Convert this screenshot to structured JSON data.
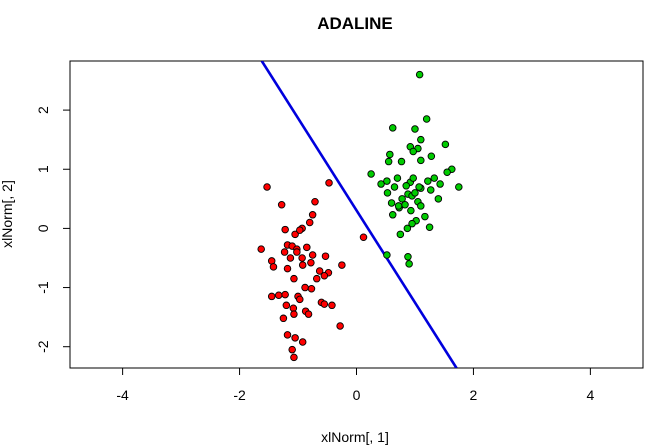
{
  "chart_data": {
    "type": "scatter",
    "title": "ADALINE",
    "xlabel": "xlNorm[, 1]",
    "ylabel": "xlNorm[, 2]",
    "xlim": [
      -4.9,
      4.9
    ],
    "ylim": [
      -2.36,
      2.83
    ],
    "xticks": [
      -4,
      -2,
      0,
      2,
      4
    ],
    "yticks": [
      -2,
      -1,
      0,
      1,
      2
    ],
    "grid": false,
    "legend": "none",
    "series": [
      {
        "color": "#ff0000",
        "points": [
          [
            -1.53,
            0.7
          ],
          [
            -1.28,
            0.4
          ],
          [
            -0.47,
            0.77
          ],
          [
            -0.71,
            0.45
          ],
          [
            -0.75,
            0.23
          ],
          [
            -0.8,
            0.1
          ],
          [
            -0.93,
            0.0
          ],
          [
            -1.22,
            -0.02
          ],
          [
            -1.05,
            -0.1
          ],
          [
            -0.97,
            -0.03
          ],
          [
            -1.63,
            -0.35
          ],
          [
            -1.18,
            -0.28
          ],
          [
            -1.1,
            -0.3
          ],
          [
            -1.02,
            -0.35
          ],
          [
            -0.85,
            -0.32
          ],
          [
            -1.23,
            -0.4
          ],
          [
            -1.45,
            -0.55
          ],
          [
            -1.13,
            -0.5
          ],
          [
            -1.02,
            -0.4
          ],
          [
            -0.93,
            -0.5
          ],
          [
            -0.75,
            -0.45
          ],
          [
            -0.53,
            -0.47
          ],
          [
            -1.42,
            -0.65
          ],
          [
            -1.18,
            -0.68
          ],
          [
            -0.92,
            -0.62
          ],
          [
            -0.78,
            -0.58
          ],
          [
            -0.63,
            -0.72
          ],
          [
            -0.48,
            -0.75
          ],
          [
            -0.25,
            -0.62
          ],
          [
            -1.07,
            -0.85
          ],
          [
            -0.68,
            -0.85
          ],
          [
            -0.55,
            -0.8
          ],
          [
            -0.88,
            -1.0
          ],
          [
            -1.33,
            -1.13
          ],
          [
            -1.22,
            -1.12
          ],
          [
            -1.0,
            -1.15
          ],
          [
            -0.77,
            -1.02
          ],
          [
            -1.45,
            -1.15
          ],
          [
            -1.08,
            -1.35
          ],
          [
            -1.2,
            -1.3
          ],
          [
            -0.97,
            -1.2
          ],
          [
            -0.6,
            -1.25
          ],
          [
            -0.55,
            -1.28
          ],
          [
            -0.42,
            -1.3
          ],
          [
            -1.07,
            -1.45
          ],
          [
            -1.25,
            -1.52
          ],
          [
            -0.87,
            -1.4
          ],
          [
            -0.28,
            -1.65
          ],
          [
            -1.18,
            -1.8
          ],
          [
            -1.05,
            -1.85
          ],
          [
            -0.92,
            -1.92
          ],
          [
            -1.1,
            -2.05
          ],
          [
            -1.07,
            -2.18
          ],
          [
            -0.82,
            -1.45
          ],
          [
            0.12,
            -0.15
          ]
        ]
      },
      {
        "color": "#00cc00",
        "points": [
          [
            1.08,
            2.6
          ],
          [
            1.2,
            1.85
          ],
          [
            0.62,
            1.7
          ],
          [
            1.0,
            1.68
          ],
          [
            1.52,
            1.42
          ],
          [
            1.1,
            1.5
          ],
          [
            0.92,
            1.38
          ],
          [
            1.05,
            1.35
          ],
          [
            0.97,
            1.3
          ],
          [
            0.57,
            1.25
          ],
          [
            1.28,
            1.22
          ],
          [
            0.55,
            1.13
          ],
          [
            0.77,
            1.13
          ],
          [
            1.1,
            1.15
          ],
          [
            1.63,
            1.0
          ],
          [
            1.55,
            0.95
          ],
          [
            1.33,
            0.85
          ],
          [
            0.25,
            0.92
          ],
          [
            0.7,
            0.85
          ],
          [
            0.92,
            0.78
          ],
          [
            0.97,
            0.85
          ],
          [
            1.22,
            0.8
          ],
          [
            1.43,
            0.75
          ],
          [
            1.75,
            0.7
          ],
          [
            0.42,
            0.75
          ],
          [
            0.52,
            0.8
          ],
          [
            0.65,
            0.7
          ],
          [
            0.85,
            0.72
          ],
          [
            1.1,
            0.68
          ],
          [
            1.27,
            0.65
          ],
          [
            0.53,
            0.6
          ],
          [
            0.88,
            0.58
          ],
          [
            0.95,
            0.55
          ],
          [
            1.0,
            0.6
          ],
          [
            0.78,
            0.5
          ],
          [
            1.4,
            0.5
          ],
          [
            1.05,
            0.45
          ],
          [
            0.6,
            0.43
          ],
          [
            0.83,
            0.4
          ],
          [
            0.73,
            0.35
          ],
          [
            1.1,
            0.38
          ],
          [
            0.93,
            0.3
          ],
          [
            1.17,
            0.2
          ],
          [
            0.62,
            0.23
          ],
          [
            1.02,
            0.13
          ],
          [
            0.95,
            0.08
          ],
          [
            1.25,
            0.02
          ],
          [
            0.87,
            0.0
          ],
          [
            0.75,
            -0.1
          ],
          [
            0.52,
            -0.45
          ],
          [
            0.88,
            -0.48
          ],
          [
            0.9,
            -0.6
          ],
          [
            0.72,
            0.38
          ],
          [
            1.07,
            0.7
          ]
        ]
      }
    ],
    "decision_line": {
      "color": "#0000dd",
      "from": [
        -1.62,
        2.83
      ],
      "to": [
        1.71,
        -2.36
      ]
    }
  }
}
